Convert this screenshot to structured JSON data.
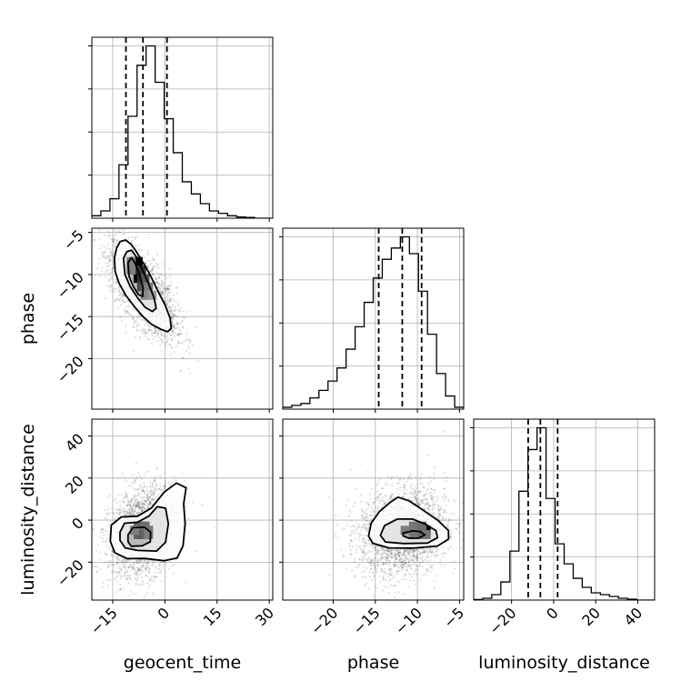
{
  "chart_data": {
    "type": "corner",
    "grid": true,
    "parameters": [
      {
        "key": "geocent_time",
        "label": "geocent_time",
        "range": [
          -21,
          31
        ],
        "ticks": [
          -15,
          0,
          15,
          30
        ],
        "tick_labels": [
          "−15",
          "0",
          "15",
          "30"
        ],
        "quantiles": [
          -11.2,
          -6.3,
          0.6
        ]
      },
      {
        "key": "phase",
        "label": "phase",
        "range": [
          -26,
          -4.5
        ],
        "ticks": [
          -20,
          -15,
          -10,
          -5
        ],
        "tick_labels": [
          "−20",
          "−15",
          "−10",
          "−5"
        ],
        "quantiles": [
          -14.6,
          -11.8,
          -9.5
        ]
      },
      {
        "key": "luminosity_distance",
        "label": "luminosity_distance",
        "range": [
          -38,
          48
        ],
        "ticks": [
          -20,
          0,
          20,
          40
        ],
        "tick_labels": [
          "−20",
          "0",
          "20",
          "40"
        ],
        "quantiles": [
          -12.1,
          -6.3,
          1.9
        ]
      }
    ],
    "histograms": {
      "geocent_time": {
        "edges": [
          -21,
          -18.4,
          -15.8,
          -13.2,
          -10.6,
          -8,
          -5.4,
          -2.8,
          -0.2,
          2.4,
          5,
          7.6,
          10.2,
          12.8,
          15.4,
          18,
          20.6,
          23.2,
          25.8,
          28.4,
          31
        ],
        "counts": [
          1,
          3,
          8,
          22,
          42,
          63,
          71,
          56,
          41,
          27,
          15,
          10,
          6,
          3,
          2,
          1,
          0.5,
          0.3,
          0,
          0
        ]
      },
      "phase": {
        "edges": [
          -26,
          -24.925,
          -23.85,
          -22.775,
          -21.7,
          -20.625,
          -19.55,
          -18.475,
          -17.4,
          -16.325,
          -15.25,
          -14.175,
          -13.1,
          -12.025,
          -10.95,
          -9.875,
          -8.8,
          -7.725,
          -6.65,
          -5.575,
          -4.5
        ],
        "counts": [
          1,
          2,
          3,
          6,
          10,
          15,
          22,
          32,
          44,
          57,
          70,
          80,
          86,
          92,
          83,
          63,
          40,
          19,
          7,
          1
        ]
      },
      "luminosity_distance": {
        "edges": [
          -38,
          -33.7,
          -29.4,
          -25.1,
          -20.8,
          -16.5,
          -12.2,
          -7.9,
          -3.6,
          0.7,
          5,
          9.3,
          13.6,
          17.9,
          22.2,
          26.5,
          30.8,
          35.1,
          39.4,
          43.7,
          48
        ],
        "counts": [
          0.3,
          1,
          3,
          10,
          27,
          60,
          83,
          95,
          56,
          31,
          20,
          12,
          7,
          4,
          3,
          2,
          1,
          0.5,
          0,
          0
        ]
      }
    },
    "joint_2d": [
      {
        "x": "geocent_time",
        "y": "phase",
        "mean": [
          -6.3,
          -11.9
        ],
        "std": [
          4.8,
          2.8
        ],
        "correlation": -0.68,
        "samples": 2400,
        "contours": [
          [
            [
              -14.5,
              -8.0
            ],
            [
              -13.9,
              -6.9
            ],
            [
              -12.9,
              -6.1
            ],
            [
              -11.3,
              -5.9
            ],
            [
              -9.7,
              -6.4
            ],
            [
              -8.2,
              -7.3
            ],
            [
              -6.3,
              -8.6
            ],
            [
              -4.3,
              -10.0
            ],
            [
              -2.2,
              -11.8
            ],
            [
              0.0,
              -13.6
            ],
            [
              1.5,
              -15.2
            ],
            [
              1.8,
              -16.4
            ],
            [
              0.8,
              -16.8
            ],
            [
              -1.2,
              -16.5
            ],
            [
              -3.9,
              -15.9
            ],
            [
              -6.3,
              -15.0
            ],
            [
              -8.8,
              -13.8
            ],
            [
              -11.2,
              -12.5
            ],
            [
              -13.2,
              -11.0
            ],
            [
              -14.3,
              -9.6
            ],
            [
              -14.5,
              -8.0
            ]
          ],
          [
            [
              -11.9,
              -8.1
            ],
            [
              -11.0,
              -7.3
            ],
            [
              -9.6,
              -7.1
            ],
            [
              -8.2,
              -7.9
            ],
            [
              -6.6,
              -9.3
            ],
            [
              -4.6,
              -11.2
            ],
            [
              -3.1,
              -12.8
            ],
            [
              -2.5,
              -14.0
            ],
            [
              -3.6,
              -14.4
            ],
            [
              -5.7,
              -13.9
            ],
            [
              -7.8,
              -12.8
            ],
            [
              -9.9,
              -11.5
            ],
            [
              -11.5,
              -10.0
            ],
            [
              -11.9,
              -8.1
            ]
          ],
          [
            [
              -10.6,
              -8.6
            ],
            [
              -9.6,
              -8.0
            ],
            [
              -8.5,
              -8.7
            ],
            [
              -7.3,
              -10.0
            ],
            [
              -6.3,
              -11.6
            ],
            [
              -6.4,
              -12.6
            ],
            [
              -7.6,
              -12.4
            ],
            [
              -9.0,
              -11.5
            ],
            [
              -10.3,
              -10.2
            ],
            [
              -10.6,
              -8.6
            ]
          ]
        ],
        "density_cells": [
          [
            -10,
            -9,
            0.55
          ],
          [
            -9,
            -9,
            1.0
          ],
          [
            -10,
            -10,
            0.75
          ],
          [
            -9,
            -10,
            0.8
          ],
          [
            -8,
            -10,
            0.7
          ],
          [
            -9,
            -11,
            1.0
          ],
          [
            -8,
            -11,
            0.75
          ],
          [
            -7,
            -11,
            0.55
          ],
          [
            -8,
            -12,
            0.6
          ],
          [
            -7,
            -12,
            0.45
          ],
          [
            -6,
            -12,
            0.3
          ],
          [
            -11,
            -9,
            0.3
          ],
          [
            -11,
            -10,
            0.3
          ],
          [
            -6,
            -13,
            0.25
          ],
          [
            -7,
            -13,
            0.25
          ],
          [
            -5,
            -13,
            0.15
          ]
        ]
      },
      {
        "x": "geocent_time",
        "y": "luminosity_distance",
        "mean": [
          -6.3,
          -5.5
        ],
        "std": [
          4.8,
          10.5
        ],
        "correlation": 0.25,
        "samples": 2400,
        "contours": [
          [
            [
              -15.7,
              -10.0
            ],
            [
              -15.4,
              -2.4
            ],
            [
              -12.5,
              1.5
            ],
            [
              -7.8,
              1.9
            ],
            [
              -3.9,
              5.7
            ],
            [
              -0.2,
              13.3
            ],
            [
              3.3,
              17.6
            ],
            [
              6.1,
              15.4
            ],
            [
              5.4,
              7.8
            ],
            [
              5.8,
              -1.7
            ],
            [
              5.2,
              -12.2
            ],
            [
              3.5,
              -18.0
            ],
            [
              -0.3,
              -19.3
            ],
            [
              -5.8,
              -18.2
            ],
            [
              -10.8,
              -18.3
            ],
            [
              -14.4,
              -15.5
            ],
            [
              -15.7,
              -10.0
            ]
          ],
          [
            [
              -12.9,
              -5.7
            ],
            [
              -11.6,
              -1.5
            ],
            [
              -7.9,
              -1.0
            ],
            [
              -4.5,
              2.0
            ],
            [
              -2.2,
              6.4
            ],
            [
              0.2,
              5.7
            ],
            [
              1.0,
              -1.7
            ],
            [
              0.2,
              -10.5
            ],
            [
              -2.4,
              -14.7
            ],
            [
              -7.8,
              -14.4
            ],
            [
              -11.4,
              -13.2
            ],
            [
              -12.9,
              -9.6
            ],
            [
              -12.9,
              -5.7
            ]
          ],
          [
            [
              -10.6,
              -7.0
            ],
            [
              -9.2,
              -3.6
            ],
            [
              -5.8,
              -3.4
            ],
            [
              -4.1,
              -5.7
            ],
            [
              -4.2,
              -10.3
            ],
            [
              -6.5,
              -12.2
            ],
            [
              -9.7,
              -12.4
            ],
            [
              -10.6,
              -10.2
            ],
            [
              -10.6,
              -7.0
            ]
          ]
        ],
        "density_cells": [
          [
            -9,
            -7,
            1.0
          ],
          [
            -8,
            -7,
            0.6
          ],
          [
            -7,
            -7,
            1.0
          ],
          [
            -9,
            -5,
            0.45
          ],
          [
            -8,
            -5,
            0.45
          ],
          [
            -7,
            -5,
            0.4
          ],
          [
            -9,
            -9,
            0.45
          ],
          [
            -8,
            -9,
            0.5
          ],
          [
            -7,
            -9,
            0.45
          ],
          [
            -6,
            -7,
            0.35
          ],
          [
            -10,
            -7,
            0.3
          ],
          [
            -6,
            -9,
            0.3
          ]
        ]
      },
      {
        "x": "phase",
        "y": "luminosity_distance",
        "mean": [
          -11.8,
          -5.5
        ],
        "std": [
          2.6,
          10.5
        ],
        "correlation": 0.15,
        "samples": 2400,
        "contours": [
          [
            [
              -15.8,
              -7.6
            ],
            [
              -15.5,
              -1.5
            ],
            [
              -14.5,
              4.1
            ],
            [
              -13.2,
              8.6
            ],
            [
              -12.3,
              10.9
            ],
            [
              -11.0,
              9.2
            ],
            [
              -9.5,
              5.2
            ],
            [
              -7.5,
              -0.3
            ],
            [
              -6.3,
              -5.0
            ],
            [
              -6.3,
              -9.0
            ],
            [
              -7.6,
              -12.3
            ],
            [
              -10.4,
              -13.3
            ],
            [
              -13.4,
              -13.2
            ],
            [
              -15.3,
              -11.0
            ],
            [
              -15.8,
              -7.6
            ]
          ],
          [
            [
              -14.4,
              -7.2
            ],
            [
              -13.9,
              -2.6
            ],
            [
              -12.4,
              0.5
            ],
            [
              -10.6,
              0.5
            ],
            [
              -9.1,
              -1.8
            ],
            [
              -7.8,
              -5.0
            ],
            [
              -7.6,
              -8.3
            ],
            [
              -8.8,
              -10.9
            ],
            [
              -11.6,
              -11.1
            ],
            [
              -13.8,
              -10.4
            ],
            [
              -14.4,
              -7.2
            ]
          ],
          [
            [
              -11.7,
              -6.1
            ],
            [
              -10.6,
              -5.1
            ],
            [
              -9.7,
              -5.4
            ],
            [
              -9.1,
              -7.0
            ],
            [
              -9.9,
              -8.6
            ],
            [
              -11.0,
              -8.6
            ],
            [
              -11.7,
              -7.5
            ],
            [
              -11.7,
              -6.1
            ]
          ]
        ],
        "density_cells": [
          [
            -10,
            -7,
            0.9
          ],
          [
            -9.5,
            -7,
            1.0
          ],
          [
            -10.5,
            -7,
            0.6
          ],
          [
            -11,
            -7,
            0.45
          ],
          [
            -10,
            -5,
            0.4
          ],
          [
            -11,
            -5,
            0.35
          ],
          [
            -10,
            -9,
            0.45
          ],
          [
            -11,
            -9,
            0.35
          ],
          [
            -9.5,
            -9,
            0.35
          ],
          [
            -12,
            -7,
            0.3
          ]
        ]
      }
    ]
  }
}
